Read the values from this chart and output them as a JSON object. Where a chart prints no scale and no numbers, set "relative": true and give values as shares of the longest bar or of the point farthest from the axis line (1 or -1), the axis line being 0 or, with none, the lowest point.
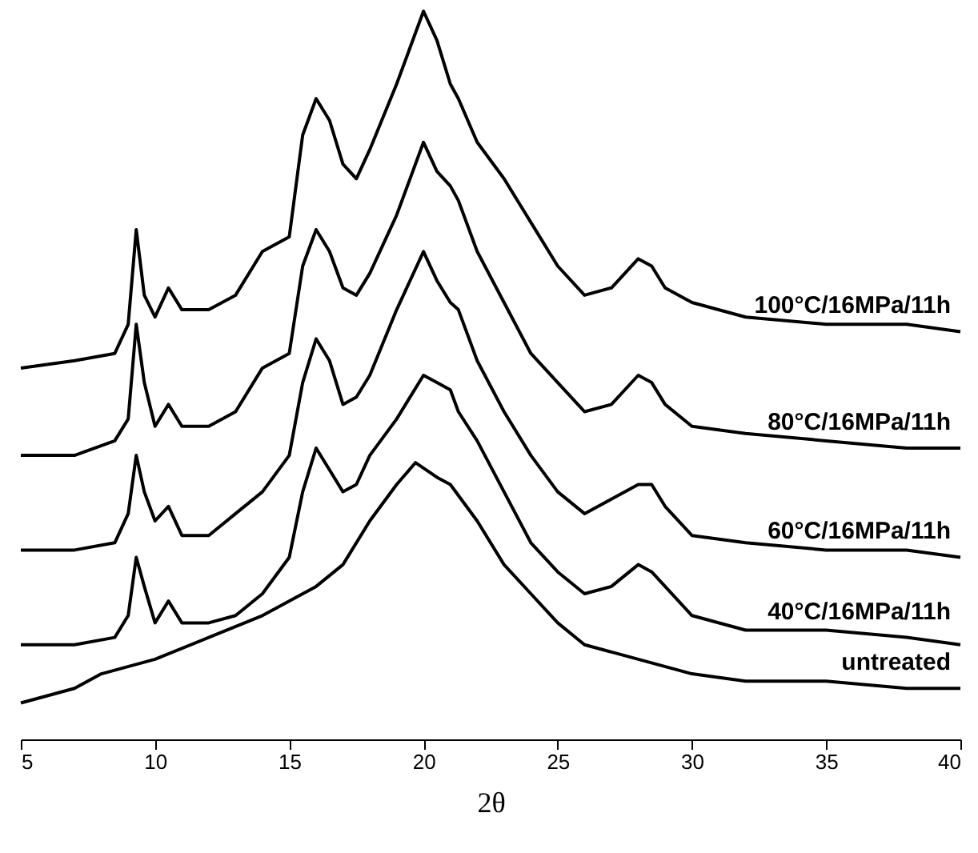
{
  "chart_data": {
    "type": "line",
    "xlabel": "2θ",
    "relative": true,
    "xlim": [
      5,
      40
    ],
    "xticks": [
      5,
      10,
      15,
      20,
      25,
      30,
      35,
      40
    ],
    "grid": false,
    "legend": false,
    "marker": "none",
    "line_style": "solid",
    "series": [
      {
        "name": "untreated",
        "color": "#000000",
        "x": [
          5,
          7,
          8,
          10,
          12,
          14,
          16,
          17,
          18,
          19,
          19.7,
          20.5,
          21,
          22,
          23,
          24,
          25,
          26,
          28,
          30,
          32,
          35,
          38,
          40
        ],
        "values": [
          0.05,
          0.07,
          0.09,
          0.11,
          0.14,
          0.17,
          0.21,
          0.24,
          0.3,
          0.35,
          0.38,
          0.36,
          0.35,
          0.3,
          0.24,
          0.2,
          0.16,
          0.13,
          0.11,
          0.09,
          0.08,
          0.08,
          0.07,
          0.07
        ]
      },
      {
        "name": "40°C/16MPa/11h",
        "color": "#000000",
        "x": [
          5,
          7,
          8.5,
          9,
          9.3,
          9.6,
          10,
          10.5,
          11,
          12,
          13,
          14,
          15,
          15.5,
          16,
          16.5,
          17,
          17.5,
          18,
          19,
          20,
          20.5,
          21,
          21.3,
          22,
          23,
          24,
          25,
          26,
          27,
          28,
          28.5,
          29,
          30,
          32,
          35,
          38,
          40
        ],
        "values": [
          0.13,
          0.13,
          0.14,
          0.17,
          0.25,
          0.21,
          0.16,
          0.19,
          0.16,
          0.16,
          0.17,
          0.2,
          0.25,
          0.34,
          0.4,
          0.37,
          0.34,
          0.35,
          0.39,
          0.44,
          0.5,
          0.49,
          0.48,
          0.45,
          0.41,
          0.34,
          0.27,
          0.23,
          0.2,
          0.21,
          0.24,
          0.23,
          0.21,
          0.17,
          0.15,
          0.15,
          0.14,
          0.13
        ]
      },
      {
        "name": "60°C/16MPa/11h",
        "color": "#000000",
        "x": [
          5,
          7,
          8.5,
          9,
          9.3,
          9.6,
          10,
          10.5,
          11,
          12,
          13,
          14,
          15,
          15.5,
          16,
          16.5,
          17,
          17.5,
          18,
          19,
          20,
          20.5,
          21,
          21.3,
          22,
          23,
          24,
          25,
          26,
          27,
          28,
          28.5,
          29,
          30,
          32,
          35,
          38,
          40
        ],
        "values": [
          0.26,
          0.26,
          0.27,
          0.31,
          0.39,
          0.34,
          0.3,
          0.32,
          0.28,
          0.28,
          0.31,
          0.34,
          0.39,
          0.49,
          0.55,
          0.52,
          0.46,
          0.47,
          0.5,
          0.59,
          0.67,
          0.63,
          0.6,
          0.59,
          0.52,
          0.45,
          0.39,
          0.34,
          0.31,
          0.33,
          0.35,
          0.35,
          0.32,
          0.28,
          0.27,
          0.26,
          0.26,
          0.25
        ]
      },
      {
        "name": "80°C/16MPa/11h",
        "color": "#000000",
        "x": [
          5,
          7,
          8.5,
          9,
          9.3,
          9.6,
          10,
          10.5,
          11,
          12,
          13,
          14,
          15,
          15.5,
          16,
          16.5,
          17,
          17.5,
          18,
          19,
          20,
          20.5,
          21,
          21.3,
          22,
          23,
          24,
          25,
          26,
          27,
          28,
          28.5,
          29,
          30,
          32,
          35,
          38,
          40
        ],
        "values": [
          0.39,
          0.39,
          0.41,
          0.44,
          0.57,
          0.49,
          0.43,
          0.46,
          0.43,
          0.43,
          0.45,
          0.51,
          0.53,
          0.65,
          0.7,
          0.67,
          0.62,
          0.61,
          0.64,
          0.72,
          0.82,
          0.78,
          0.76,
          0.74,
          0.67,
          0.6,
          0.53,
          0.49,
          0.45,
          0.46,
          0.5,
          0.49,
          0.46,
          0.43,
          0.42,
          0.41,
          0.4,
          0.4
        ]
      },
      {
        "name": "100°C/16MPa/11h",
        "color": "#000000",
        "x": [
          5,
          7,
          8.5,
          9,
          9.3,
          9.6,
          10,
          10.5,
          11,
          12,
          13,
          14,
          15,
          15.5,
          16,
          16.5,
          17,
          17.5,
          18,
          19,
          20,
          20.5,
          21,
          21.3,
          22,
          23,
          24,
          25,
          26,
          27,
          28,
          28.5,
          29,
          30,
          32,
          35,
          38,
          40
        ],
        "values": [
          0.51,
          0.52,
          0.53,
          0.57,
          0.7,
          0.61,
          0.58,
          0.62,
          0.59,
          0.59,
          0.61,
          0.67,
          0.69,
          0.83,
          0.88,
          0.85,
          0.79,
          0.77,
          0.81,
          0.9,
          1,
          0.96,
          0.9,
          0.88,
          0.82,
          0.77,
          0.71,
          0.65,
          0.61,
          0.62,
          0.66,
          0.65,
          0.62,
          0.6,
          0.58,
          0.57,
          0.57,
          0.56
        ]
      }
    ]
  }
}
